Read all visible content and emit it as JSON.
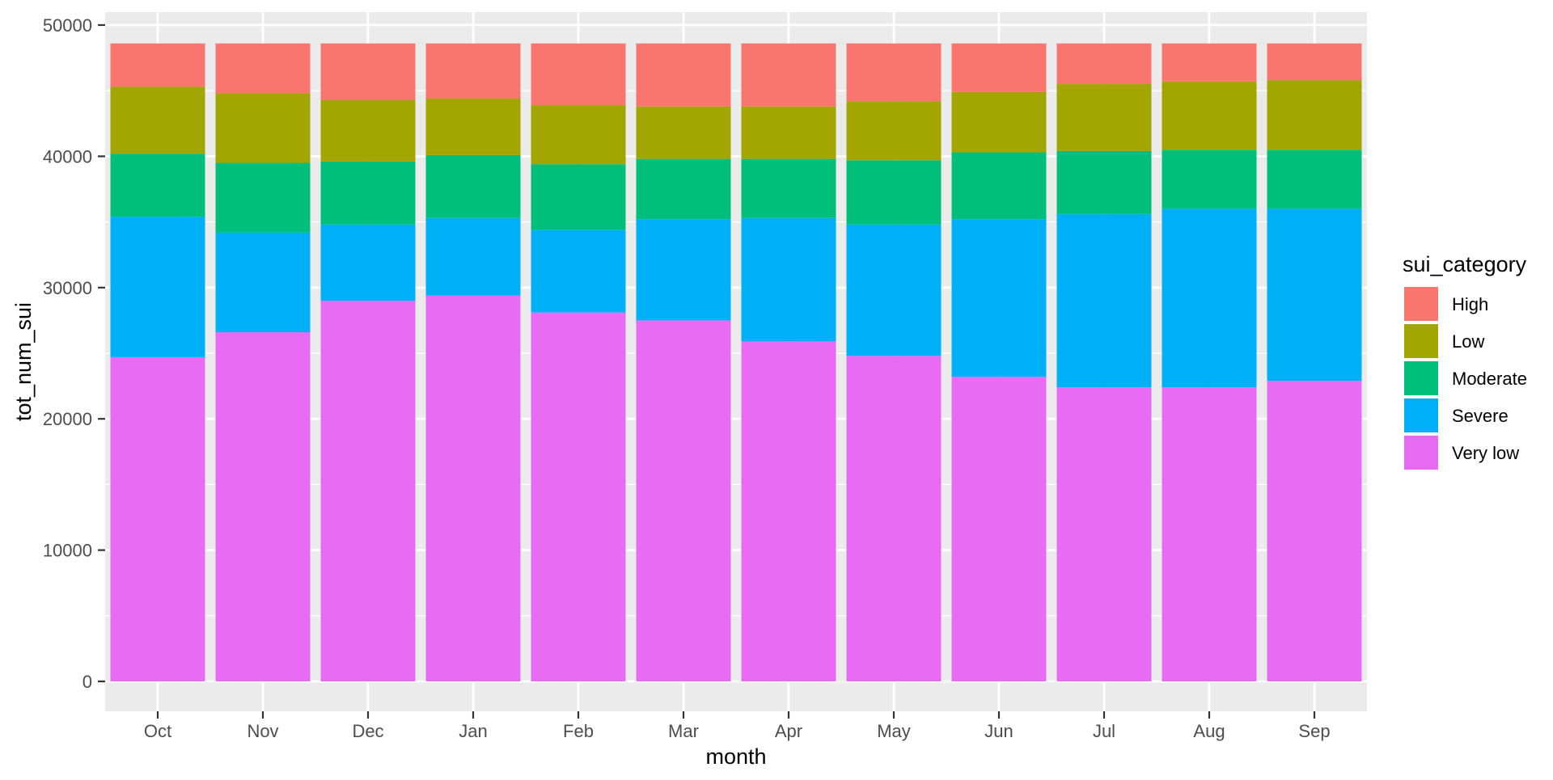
{
  "chart_data": {
    "type": "bar",
    "stacked": true,
    "xlabel": "month",
    "ylabel": "tot_num_sui",
    "categories": [
      "Oct",
      "Nov",
      "Dec",
      "Jan",
      "Feb",
      "Mar",
      "Apr",
      "May",
      "Jun",
      "Jul",
      "Aug",
      "Sep"
    ],
    "ylim": [
      0,
      50000
    ],
    "yticks": [
      0,
      10000,
      20000,
      30000,
      40000,
      50000
    ],
    "ytick_labels": [
      "0",
      "10000",
      "20000",
      "30000",
      "40000",
      "50000"
    ],
    "grid": true,
    "legend": {
      "title": "sui_category",
      "position": "right",
      "items": [
        {
          "name": "High",
          "color": "#F8766D"
        },
        {
          "name": "Low",
          "color": "#A3A500"
        },
        {
          "name": "Moderate",
          "color": "#00BF7D"
        },
        {
          "name": "Severe",
          "color": "#00B0F6"
        },
        {
          "name": "Very low",
          "color": "#E76BF3"
        }
      ]
    },
    "stack_order_bottom_to_top": [
      "Very low",
      "Severe",
      "Moderate",
      "Low",
      "High"
    ],
    "series": [
      {
        "name": "Very low",
        "color": "#E76BF3",
        "values": [
          24700,
          26600,
          29000,
          29400,
          28100,
          27500,
          25900,
          24800,
          23200,
          22400,
          22400,
          22900
        ]
      },
      {
        "name": "Severe",
        "color": "#00B0F6",
        "values": [
          10700,
          7600,
          5800,
          5900,
          6300,
          7700,
          9400,
          10000,
          12000,
          13200,
          13600,
          13100
        ]
      },
      {
        "name": "Moderate",
        "color": "#00BF7D",
        "values": [
          4800,
          5300,
          4800,
          4800,
          5000,
          4600,
          4500,
          4900,
          5100,
          4800,
          4500,
          4500
        ]
      },
      {
        "name": "Low",
        "color": "#A3A500",
        "values": [
          5100,
          5300,
          4700,
          4300,
          4500,
          4000,
          4000,
          4500,
          4600,
          5100,
          5200,
          5300
        ]
      },
      {
        "name": "High",
        "color": "#F8766D",
        "values": [
          3300,
          3800,
          4300,
          4200,
          4700,
          4800,
          4800,
          4400,
          3700,
          3100,
          2900,
          2800
        ]
      }
    ]
  }
}
